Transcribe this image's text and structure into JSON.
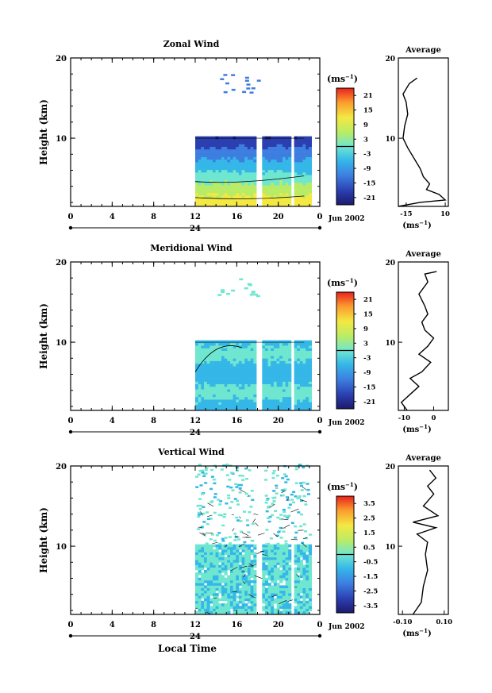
{
  "common": {
    "ylabel": "Height (km)",
    "xticks": [
      "0",
      "4",
      "8",
      "12",
      "16",
      "20",
      "0"
    ],
    "yticks": [
      "20",
      "10"
    ],
    "date_label": "24",
    "month_label": "Jun 2002",
    "xlabel_bottom": "Local Time",
    "units_label": "(ms",
    "units_exp": "−1",
    "units_close": ")",
    "avg_title": "Average"
  },
  "chart_data": [
    {
      "type": "heatmap",
      "title": "Zonal Wind",
      "ylabel": "Height (km)",
      "xlabel": "",
      "xlim": [
        0,
        24
      ],
      "ylim": [
        1.5,
        20
      ],
      "data_time_range": [
        12,
        23
      ],
      "colorbar": {
        "ticks": [
          "21",
          "15",
          "9",
          "3",
          "-3",
          "-9",
          "-15",
          "-21"
        ],
        "range": [
          -24,
          24
        ]
      },
      "average_profile": {
        "title": "Average",
        "xticks": [
          "-15",
          "10"
        ],
        "xlim": [
          -20,
          12
        ],
        "points": [
          [
            -20,
            1.5
          ],
          [
            -6,
            2
          ],
          [
            10,
            2.3
          ],
          [
            6,
            3
          ],
          [
            -2,
            3.6
          ],
          [
            0,
            4.3
          ],
          [
            -4,
            5.2
          ],
          [
            -6,
            6.2
          ],
          [
            -10,
            7.5
          ],
          [
            -14,
            8.8
          ],
          [
            -17,
            10
          ],
          [
            -16,
            11.5
          ],
          [
            -14,
            13
          ],
          [
            -15,
            14.5
          ],
          [
            -17,
            15.5
          ],
          [
            -13,
            16.8
          ],
          [
            -8,
            17.5
          ]
        ]
      }
    },
    {
      "type": "heatmap",
      "title": "Meridional Wind",
      "ylabel": "Height (km)",
      "xlabel": "",
      "xlim": [
        0,
        24
      ],
      "ylim": [
        1.5,
        20
      ],
      "data_time_range": [
        12,
        23
      ],
      "colorbar": {
        "ticks": [
          "21",
          "15",
          "9",
          "3",
          "-3",
          "-9",
          "-15",
          "-21"
        ],
        "range": [
          -24,
          24
        ]
      },
      "average_profile": {
        "title": "Average",
        "xticks": [
          "-10",
          "0"
        ],
        "xlim": [
          -12,
          5
        ],
        "points": [
          [
            -9,
            1.5
          ],
          [
            -11,
            2.5
          ],
          [
            -8,
            3.5
          ],
          [
            -5,
            4.5
          ],
          [
            -8,
            5.5
          ],
          [
            -4,
            6.3
          ],
          [
            -1,
            7.5
          ],
          [
            -5,
            8.5
          ],
          [
            -2,
            9.5
          ],
          [
            0,
            10.5
          ],
          [
            -3,
            11.5
          ],
          [
            -4,
            12.5
          ],
          [
            -2,
            13.5
          ],
          [
            -3,
            14.5
          ],
          [
            -5,
            16
          ],
          [
            -2,
            17.5
          ],
          [
            -3,
            18.5
          ],
          [
            1,
            18.8
          ]
        ]
      }
    },
    {
      "type": "heatmap",
      "title": "Vertical Wind",
      "ylabel": "Height (km)",
      "xlabel": "Local Time",
      "xlim": [
        0,
        24
      ],
      "ylim": [
        1.5,
        20
      ],
      "data_time_range": [
        12,
        23
      ],
      "colorbar": {
        "ticks": [
          "3.5",
          "2.5",
          "1.5",
          "0.5",
          "-0.5",
          "-1.5",
          "-2.5",
          "-3.5"
        ],
        "range": [
          -4,
          4
        ]
      },
      "average_profile": {
        "title": "Average",
        "xticks": [
          "-0.10",
          "0.10"
        ],
        "xlim": [
          -0.12,
          0.12
        ],
        "points": [
          [
            -0.05,
            1.5
          ],
          [
            -0.01,
            3
          ],
          [
            0.0,
            5
          ],
          [
            0.02,
            7
          ],
          [
            0.01,
            9
          ],
          [
            0.02,
            10.5
          ],
          [
            -0.03,
            11.5
          ],
          [
            0.06,
            12.3
          ],
          [
            -0.05,
            13
          ],
          [
            0.07,
            13.8
          ],
          [
            0.0,
            15
          ],
          [
            0.05,
            16.5
          ],
          [
            0.02,
            17.5
          ],
          [
            0.06,
            18.5
          ],
          [
            0.03,
            19.5
          ]
        ]
      }
    }
  ]
}
